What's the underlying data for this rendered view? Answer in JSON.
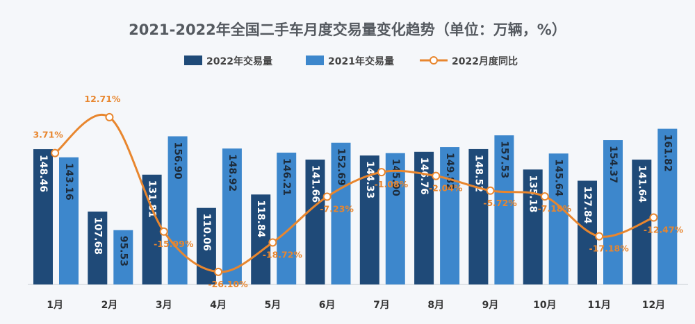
{
  "chart_data": {
    "type": "bar",
    "title": "2021-2022年全国二手车月度交易量变化趋势（单位：万辆，%）",
    "categories": [
      "1月",
      "2月",
      "3月",
      "4月",
      "5月",
      "6月",
      "7月",
      "8月",
      "9月",
      "10月",
      "11月",
      "12月"
    ],
    "series": [
      {
        "name": "2022年交易量",
        "type": "bar",
        "color": "#1f4a78",
        "values": [
          148.46,
          107.68,
          131.81,
          110.06,
          118.84,
          141.66,
          144.33,
          146.76,
          148.52,
          135.18,
          127.84,
          141.64
        ],
        "labels": [
          "148.46",
          "107.68",
          "131.81",
          "110.06",
          "118.84",
          "141.66",
          "144.33",
          "146.76",
          "148.52",
          "135.18",
          "127.84",
          "141.64"
        ]
      },
      {
        "name": "2021年交易量",
        "type": "bar",
        "color": "#3d87cc",
        "values": [
          143.16,
          95.53,
          156.9,
          148.92,
          146.21,
          152.69,
          145.9,
          149.82,
          157.53,
          145.64,
          154.37,
          161.82
        ],
        "labels": [
          "143.16",
          "95.53",
          "156.90",
          "148.92",
          "146.21",
          "152.69",
          "145.90",
          "149.82",
          "157.53",
          "145.64",
          "154.37",
          "161.82"
        ]
      },
      {
        "name": "2022月度同比",
        "type": "line",
        "color": "#e8862e",
        "values": [
          3.71,
          12.71,
          -15.99,
          -26.1,
          -18.72,
          -7.23,
          -1.08,
          -2.04,
          -5.72,
          -7.18,
          -17.18,
          -12.47
        ],
        "labels": [
          "3.71%",
          "12.71%",
          "-15.99%",
          "-26.10%",
          "-18.72%",
          "-7.23%",
          "-1.08%",
          "-2.04%",
          "-5.72%",
          "-7.18%",
          "-17.18%",
          "-12.47%"
        ]
      }
    ],
    "bar_axis": {
      "min": 60,
      "max": 168
    },
    "line_axis": {
      "min": -31,
      "max": 16
    },
    "legend_position": "top-center",
    "grid": false
  }
}
